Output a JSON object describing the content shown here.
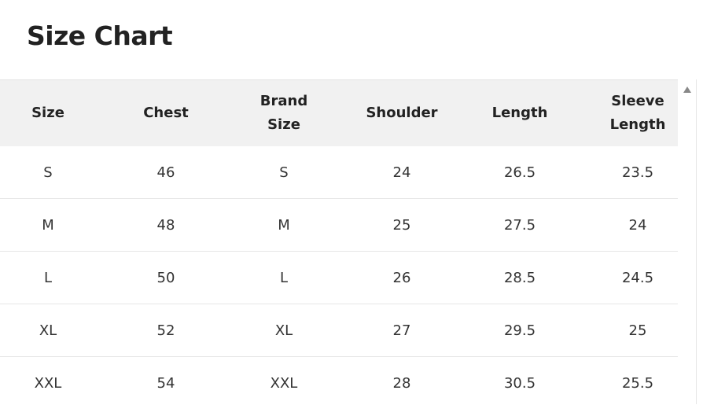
{
  "title": "Size Chart",
  "table": {
    "headers": [
      [
        "Size"
      ],
      [
        "Chest"
      ],
      [
        "Brand",
        "Size"
      ],
      [
        "Shoulder"
      ],
      [
        "Length"
      ],
      [
        "Sleeve",
        "Length"
      ]
    ],
    "rows": [
      [
        "S",
        "46",
        "S",
        "24",
        "26.5",
        "23.5"
      ],
      [
        "M",
        "48",
        "M",
        "25",
        "27.5",
        "24"
      ],
      [
        "L",
        "50",
        "L",
        "26",
        "28.5",
        "24.5"
      ],
      [
        "XL",
        "52",
        "XL",
        "27",
        "29.5",
        "25"
      ],
      [
        "XXL",
        "54",
        "XXL",
        "28",
        "30.5",
        "25.5"
      ]
    ]
  },
  "scrollbar": {
    "icon": "scroll-up-arrow-icon"
  }
}
